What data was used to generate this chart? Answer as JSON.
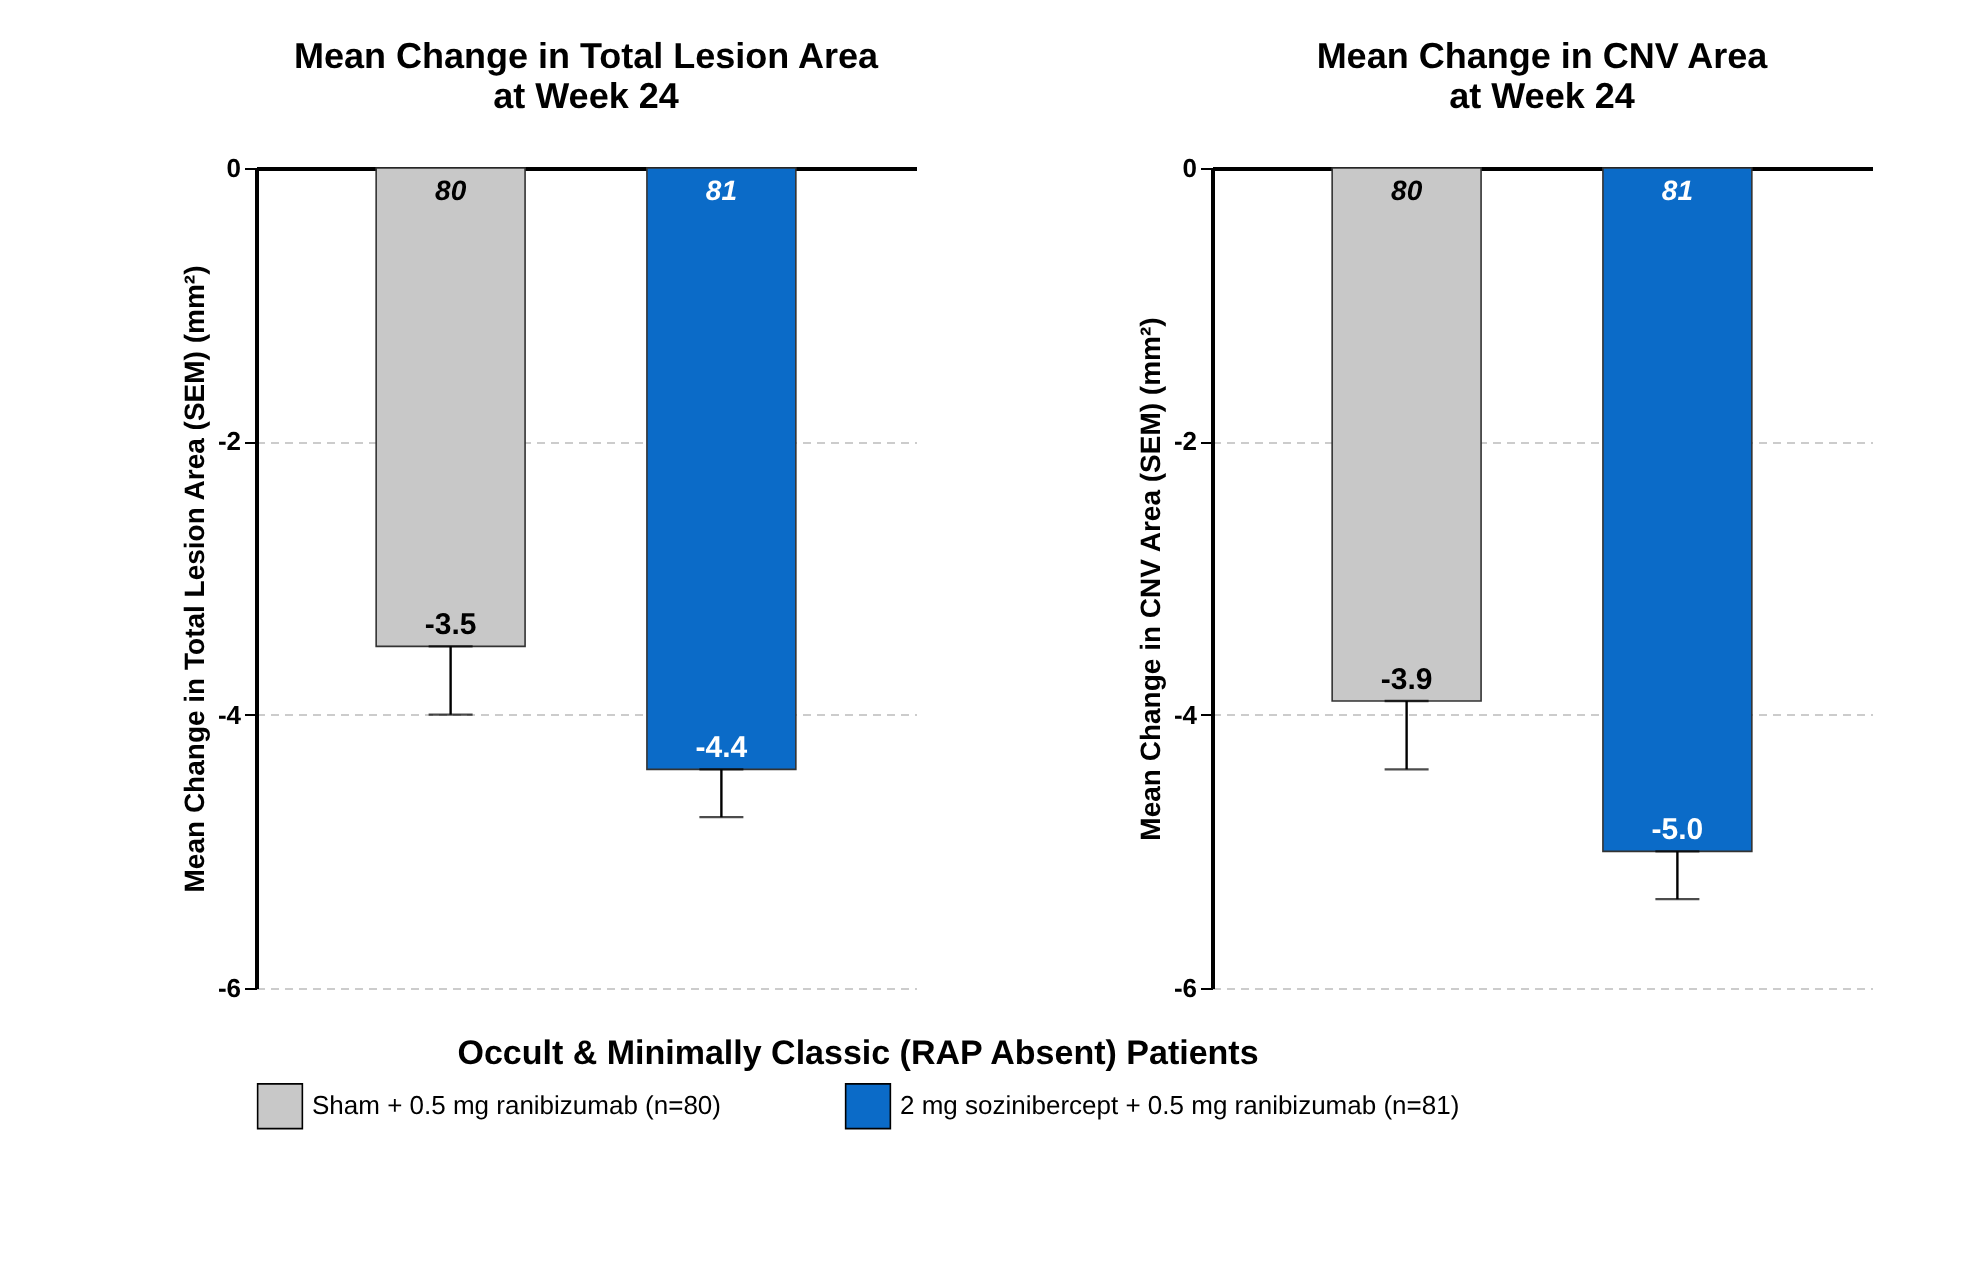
{
  "chart_data": [
    {
      "type": "bar",
      "title": "Mean Change in Total Lesion Area\nat Week 24",
      "ylabel": "Mean Change in Total Lesion Area (SEM) (mm²)",
      "categories": [
        null
      ],
      "series": [
        {
          "name": "Sham + 0.5 mg ranibizumab (n=80)",
          "color": "#c8c8c8",
          "values": [
            -3.5
          ],
          "errors": [
            [
              -4.0,
              -3.5
            ]
          ],
          "value_labels": [
            "-3.5"
          ]
        },
        {
          "name": "2 mg sozinibercept + 0.5 mg ranibizumab (n=81)",
          "color": "#0b6bc8",
          "values": [
            -4.4
          ],
          "errors": [
            [
              -4.75,
              -4.4
            ]
          ],
          "value_labels": [
            "-4.4"
          ]
        }
      ],
      "annotations": [
        "80",
        "81"
      ],
      "ylim": [
        -6,
        0
      ],
      "yticks": [
        0,
        -2,
        -4,
        -6
      ],
      "grid": "y",
      "legend": "bottom",
      "legend_title": "Occult & Minimally Classic (RAP Absent) Patients"
    },
    {
      "type": "bar",
      "title": "Mean Change in CNV Area\nat Week 24",
      "ylabel": "Mean Change in CNV Area (SEM) (mm²)",
      "categories": [
        null
      ],
      "series": [
        {
          "name": "Sham + 0.5 mg ranibizumab (n=80)",
          "color": "#c8c8c8",
          "values": [
            -3.9
          ],
          "errors": [
            [
              -4.4,
              -3.9
            ]
          ],
          "value_labels": [
            "-3.9"
          ]
        },
        {
          "name": "2 mg sozinibercept + 0.5 mg ranibizumab (n=81)",
          "color": "#0b6bc8",
          "values": [
            -5.0
          ],
          "errors": [
            [
              -5.35,
              -5.0
            ]
          ],
          "value_labels": [
            "-5.0"
          ]
        }
      ],
      "annotations": [
        "80",
        "81"
      ],
      "ylim": [
        -6,
        0
      ],
      "yticks": [
        0,
        -2,
        -4,
        -6
      ],
      "grid": "y"
    }
  ]
}
